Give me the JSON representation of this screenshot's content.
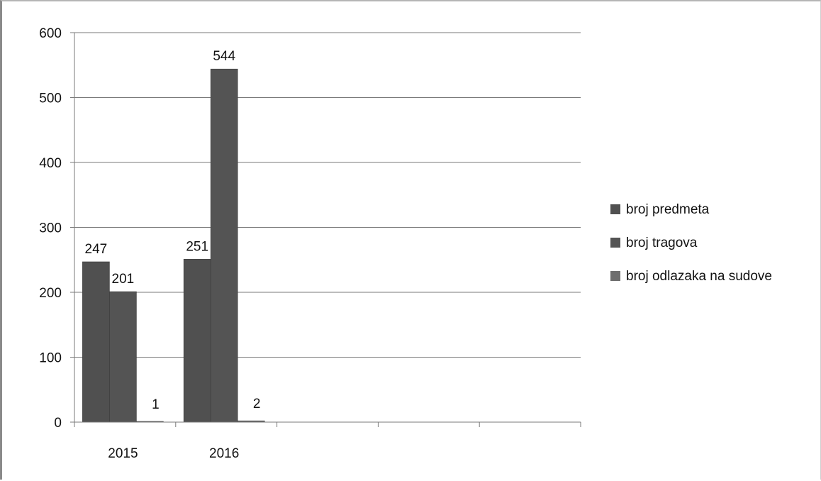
{
  "chart_data": {
    "type": "bar",
    "title": "",
    "xlabel": "",
    "ylabel": "",
    "categories": [
      "2015",
      "2016",
      "",
      "",
      ""
    ],
    "series": [
      {
        "name": "broj predmeta",
        "values": [
          247,
          251,
          null,
          null,
          null
        ],
        "color": "#505050"
      },
      {
        "name": "broj tragova",
        "values": [
          201,
          544,
          null,
          null,
          null
        ],
        "color": "#545454"
      },
      {
        "name": "broj odlazaka na sudove",
        "values": [
          1,
          2,
          null,
          null,
          null
        ],
        "color": "#6e6e6e"
      }
    ],
    "ylim": [
      0,
      600
    ],
    "yticks": [
      0,
      100,
      200,
      300,
      400,
      500,
      600
    ],
    "grid": true,
    "legend_position": "right",
    "data_labels": true
  }
}
